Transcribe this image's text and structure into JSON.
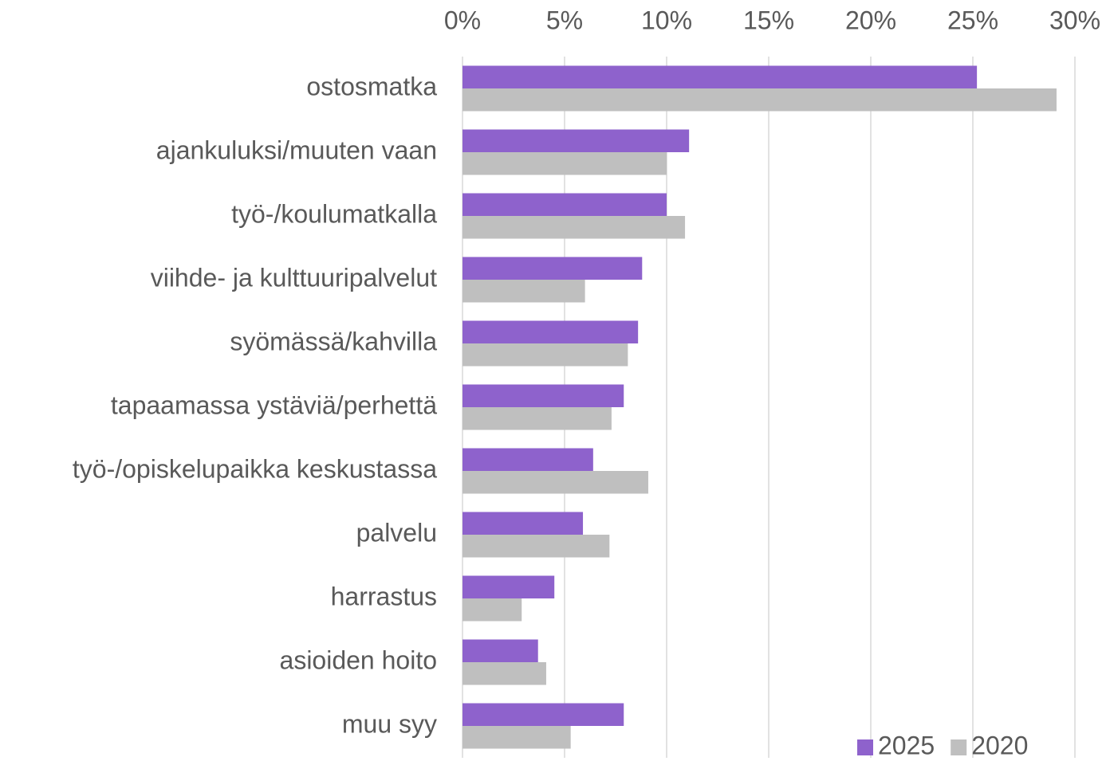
{
  "chart_data": {
    "type": "bar",
    "orientation": "horizontal",
    "categories": [
      "ostosmatka",
      "ajankuluksi/muuten vaan",
      "työ-/koulumatkalla",
      "viihde- ja kulttuuripalvelut",
      "syömässä/kahvilla",
      "tapaamassa ystäviä/perhettä",
      "työ-/opiskelupaikka keskustassa",
      "palvelu",
      "harrastus",
      "asioiden hoito",
      "muu syy"
    ],
    "series": [
      {
        "name": "2025",
        "color": "#8e62cc",
        "values": [
          25.2,
          11.1,
          10.0,
          8.8,
          8.6,
          7.9,
          6.4,
          5.9,
          4.5,
          3.7,
          7.9
        ]
      },
      {
        "name": "2020",
        "color": "#bfbfbf",
        "values": [
          29.1,
          10.0,
          10.9,
          6.0,
          8.1,
          7.3,
          9.1,
          7.2,
          2.9,
          4.1,
          5.3
        ]
      }
    ],
    "xlim": [
      0,
      30
    ],
    "xticks": [
      {
        "value": 0,
        "label": "0%"
      },
      {
        "value": 5,
        "label": "5%"
      },
      {
        "value": 10,
        "label": "10%"
      },
      {
        "value": 15,
        "label": "15%"
      },
      {
        "value": 20,
        "label": "20%"
      },
      {
        "value": 25,
        "label": "25%"
      },
      {
        "value": 30,
        "label": "30%"
      }
    ],
    "grid": true,
    "legend": "lower right"
  }
}
